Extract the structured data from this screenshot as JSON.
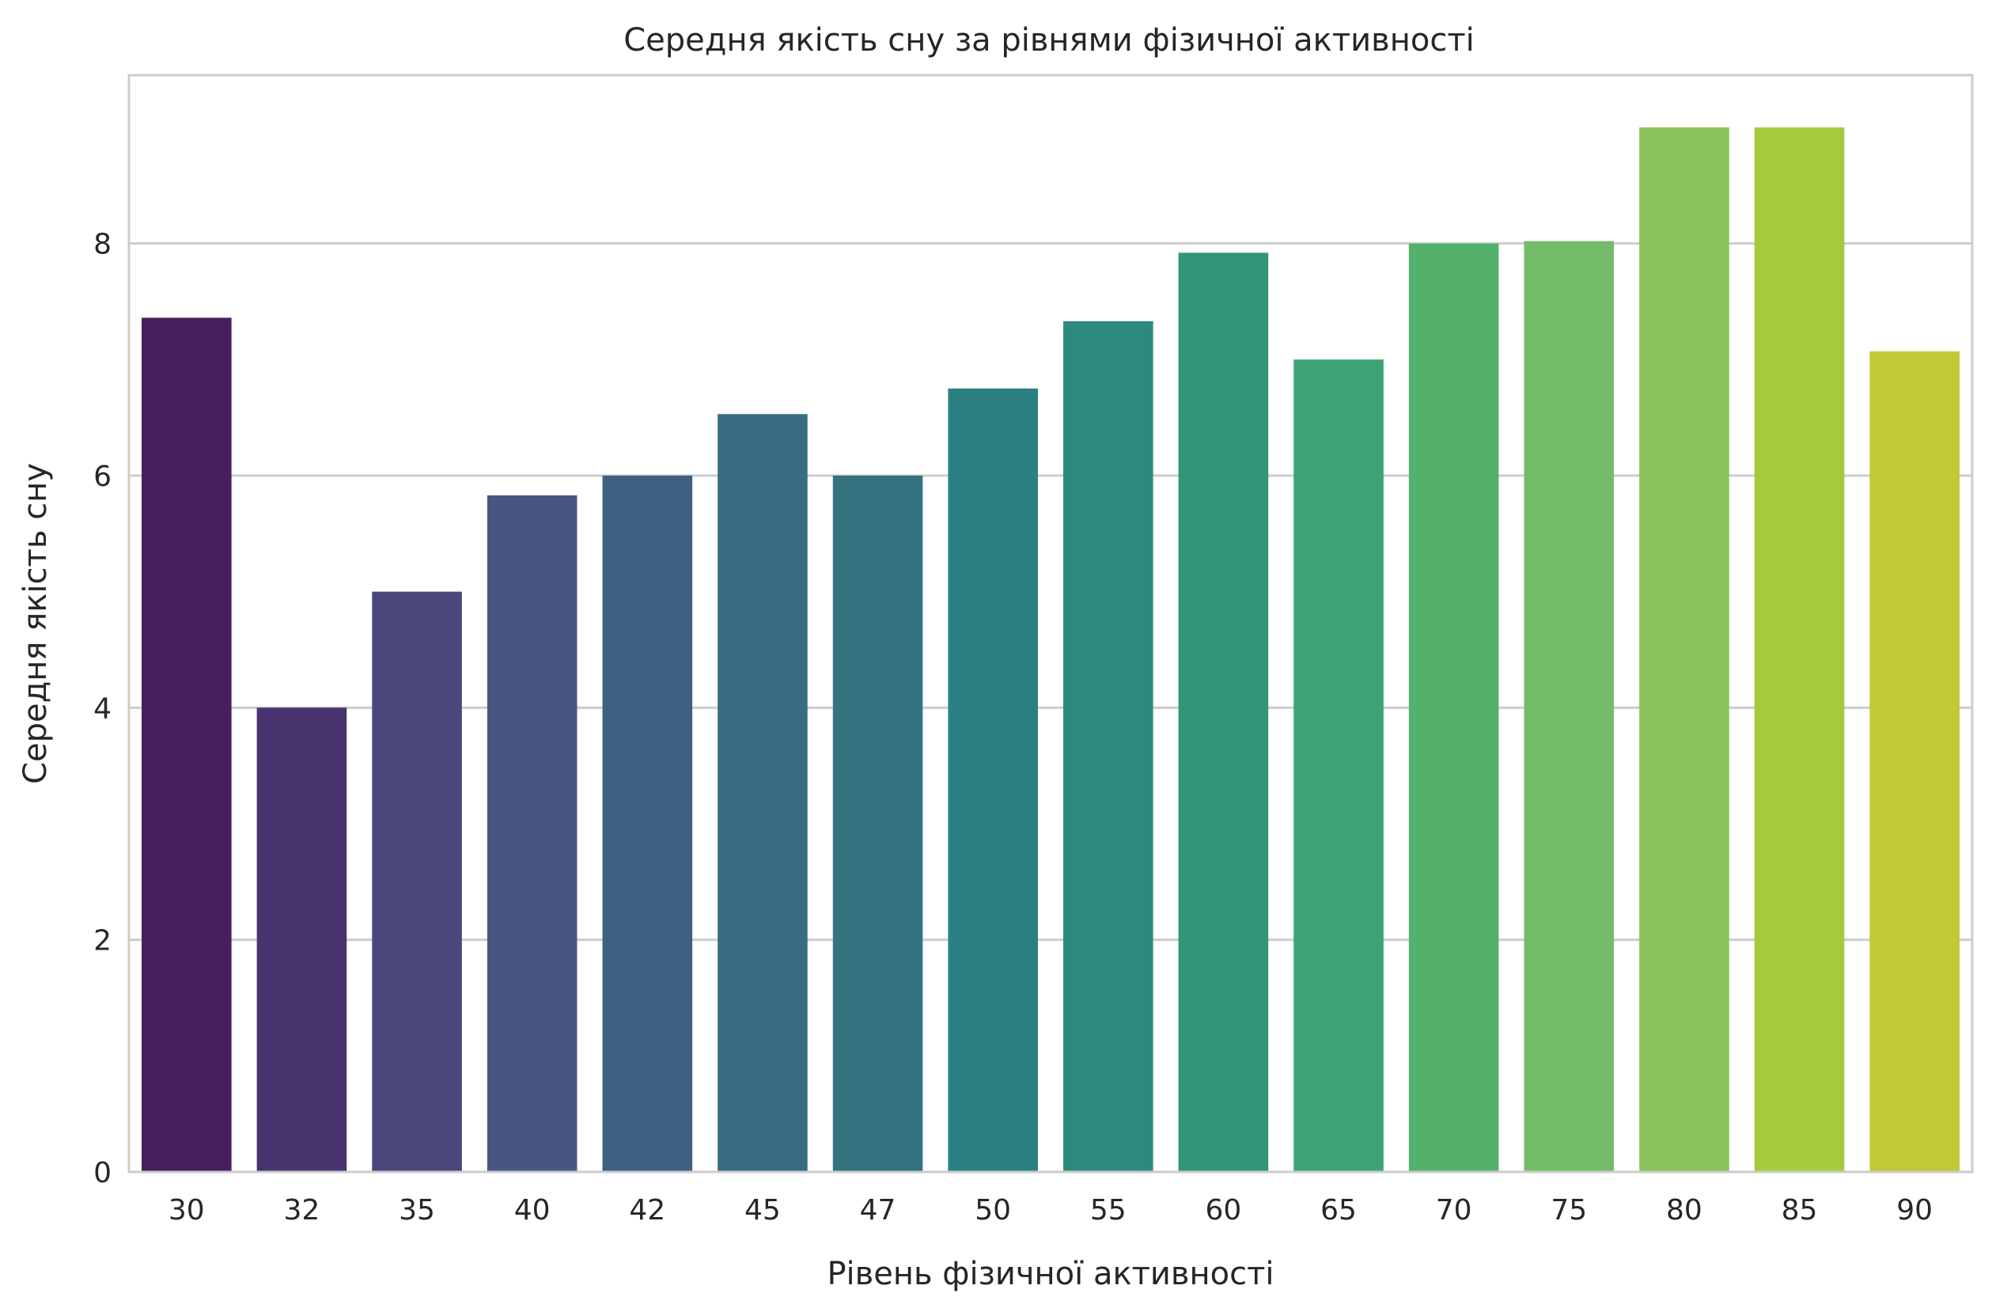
{
  "chart_data": {
    "type": "bar",
    "title": "Середня якість сну за рівнями фізичної активності",
    "xlabel": "Рівень фізичної активності",
    "ylabel": "Середня якість сну",
    "categories": [
      "30",
      "32",
      "35",
      "40",
      "42",
      "45",
      "47",
      "50",
      "55",
      "60",
      "65",
      "70",
      "75",
      "80",
      "85",
      "90"
    ],
    "values": [
      7.36,
      4.0,
      5.0,
      5.83,
      6.0,
      6.53,
      6.0,
      6.75,
      7.33,
      7.92,
      7.0,
      8.0,
      8.02,
      9.0,
      9.0,
      7.07
    ],
    "colors": [
      "#481f5d",
      "#49346f",
      "#4a487b",
      "#465681",
      "#3f6081",
      "#396d81",
      "#357380",
      "#2c8082",
      "#2b8a7d",
      "#329579",
      "#3ea374",
      "#53b16c",
      "#74bc69",
      "#8bc45b",
      "#a5cb3d",
      "#c1c934"
    ],
    "ylim": [
      0,
      9.45
    ],
    "yticks": [
      0,
      2,
      4,
      6,
      8
    ],
    "grid": "y"
  }
}
